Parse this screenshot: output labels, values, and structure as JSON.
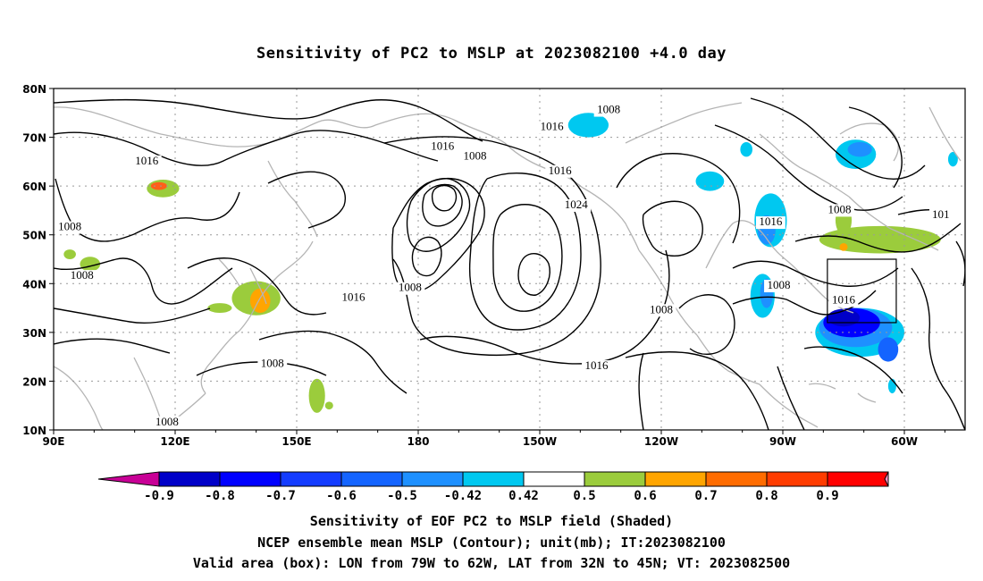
{
  "title": "Sensitivity of PC2 to MSLP at 2023082100 +4.0 day",
  "axes": {
    "lat_labels": [
      "80N",
      "70N",
      "60N",
      "50N",
      "40N",
      "30N",
      "20N",
      "10N"
    ],
    "lon_labels": [
      "90E",
      "120E",
      "150E",
      "180",
      "150W",
      "120W",
      "90W",
      "60W"
    ]
  },
  "contour_labels": [
    {
      "text": "1016",
      "lon": 113,
      "lat": 65
    },
    {
      "text": "1008",
      "lon": 94,
      "lat": 51.5
    },
    {
      "text": "1008",
      "lon": 97,
      "lat": 41.5
    },
    {
      "text": "1016",
      "lon": -174,
      "lat": 68
    },
    {
      "text": "1008",
      "lon": -166,
      "lat": 66
    },
    {
      "text": "1016",
      "lon": -147,
      "lat": 72
    },
    {
      "text": "1008",
      "lon": -133,
      "lat": 75.5
    },
    {
      "text": "1016",
      "lon": -145,
      "lat": 63
    },
    {
      "text": "1024",
      "lon": -141,
      "lat": 56
    },
    {
      "text": "1016",
      "lon": 164,
      "lat": 37
    },
    {
      "text": "1008",
      "lon": 178,
      "lat": 39
    },
    {
      "text": "1008",
      "lon": -120,
      "lat": 34.5
    },
    {
      "text": "1016",
      "lon": -136,
      "lat": 23
    },
    {
      "text": "1008",
      "lon": 144,
      "lat": 23.5
    },
    {
      "text": "1008",
      "lon": 118,
      "lat": 11.5
    },
    {
      "text": "1008",
      "lon": -76,
      "lat": 55
    },
    {
      "text": "1016",
      "lon": -93,
      "lat": 52.5
    },
    {
      "text": "1008",
      "lon": -91,
      "lat": 39.5
    },
    {
      "text": "1016",
      "lon": -75,
      "lat": 36.5
    },
    {
      "text": "101",
      "lon": -51,
      "lat": 54
    }
  ],
  "shaded_regions": [
    {
      "level": 0.5,
      "color": "#9bcc3c",
      "lon": 117,
      "lat": 59.5,
      "rx": 4,
      "ry": 1.8
    },
    {
      "level": 0.7,
      "color": "#ff5f1a",
      "lon": 116,
      "lat": 60,
      "rx": 2,
      "ry": 0.8
    },
    {
      "level": 0.5,
      "color": "#9bcc3c",
      "lon": 99,
      "lat": 44,
      "rx": 2.5,
      "ry": 1.5
    },
    {
      "level": 0.5,
      "color": "#9bcc3c",
      "lon": 94,
      "lat": 46,
      "rx": 1.5,
      "ry": 1
    },
    {
      "level": 0.5,
      "color": "#9bcc3c",
      "lon": 140,
      "lat": 37,
      "rx": 6,
      "ry": 3.5
    },
    {
      "level": 0.6,
      "color": "#ffa500",
      "lon": 141,
      "lat": 36.5,
      "rx": 2.5,
      "ry": 2.5
    },
    {
      "level": 0.5,
      "color": "#9bcc3c",
      "lon": 131,
      "lat": 35,
      "rx": 3,
      "ry": 1
    },
    {
      "level": 0.5,
      "color": "#9bcc3c",
      "lon": 155,
      "lat": 17,
      "rx": 2,
      "ry": 3.5
    },
    {
      "level": 0.5,
      "color": "#9bcc3c",
      "lon": 158,
      "lat": 15,
      "rx": 1,
      "ry": 0.8
    },
    {
      "level": -0.42,
      "color": "#00c8f0",
      "lon": -138,
      "lat": 72.5,
      "rx": 5,
      "ry": 2.5
    },
    {
      "level": -0.42,
      "color": "#00c8f0",
      "lon": -108,
      "lat": 61,
      "rx": 3.5,
      "ry": 2
    },
    {
      "level": -0.42,
      "color": "#00c8f0",
      "lon": -99,
      "lat": 67.5,
      "rx": 1.5,
      "ry": 1.5
    },
    {
      "level": -0.42,
      "color": "#00c8f0",
      "lon": -93,
      "lat": 53,
      "rx": 4,
      "ry": 5.5
    },
    {
      "level": -0.5,
      "color": "#1e90ff",
      "lon": -94,
      "lat": 51,
      "rx": 2.2,
      "ry": 3
    },
    {
      "level": -0.42,
      "color": "#00c8f0",
      "lon": -95,
      "lat": 37.5,
      "rx": 3,
      "ry": 4.5
    },
    {
      "level": -0.5,
      "color": "#1e90ff",
      "lon": -94,
      "lat": 38,
      "rx": 1.6,
      "ry": 3
    },
    {
      "level": -0.42,
      "color": "#00c8f0",
      "lon": -71,
      "lat": 30,
      "rx": 11,
      "ry": 5
    },
    {
      "level": -0.5,
      "color": "#1e90ff",
      "lon": -72,
      "lat": 31,
      "rx": 9,
      "ry": 4
    },
    {
      "level": -0.8,
      "color": "#0000ff",
      "lon": -73,
      "lat": 32,
      "rx": 7,
      "ry": 3
    },
    {
      "level": -0.9,
      "color": "#0000c8",
      "lon": -75,
      "lat": 33,
      "rx": 4,
      "ry": 1.8
    },
    {
      "level": -0.6,
      "color": "#1464ff",
      "lon": -64,
      "lat": 26.5,
      "rx": 2.5,
      "ry": 2.5
    },
    {
      "level": -0.42,
      "color": "#00c8f0",
      "lon": -63,
      "lat": 19,
      "rx": 1,
      "ry": 1.5
    },
    {
      "level": -0.42,
      "color": "#00c8f0",
      "lon": -72,
      "lat": 66.5,
      "rx": 5,
      "ry": 3
    },
    {
      "level": -0.5,
      "color": "#1e90ff",
      "lon": -71,
      "lat": 67.5,
      "rx": 3,
      "ry": 1.5
    },
    {
      "level": -0.42,
      "color": "#00c8f0",
      "lon": -48,
      "lat": 65.5,
      "rx": 1.2,
      "ry": 1.5
    },
    {
      "level": 0.5,
      "color": "#9bcc3c",
      "lon": -66,
      "lat": 49,
      "rx": 15,
      "ry": 2.8
    },
    {
      "level": 0.5,
      "color": "#9bcc3c",
      "lon": -75,
      "lat": 53,
      "rx": 2,
      "ry": 3
    },
    {
      "level": 0.6,
      "color": "#ffa500",
      "lon": -75,
      "lat": 47.5,
      "rx": 1,
      "ry": 0.8
    }
  ],
  "valid_box": {
    "lon_min": -79,
    "lon_max": -62,
    "lat_min": 32,
    "lat_max": 45
  },
  "colorbar": {
    "labels": [
      "-0.9",
      "-0.8",
      "-0.7",
      "-0.6",
      "-0.5",
      "-0.42",
      "0.42",
      "0.5",
      "0.6",
      "0.7",
      "0.8",
      "0.9"
    ],
    "colors": [
      "#0000c8",
      "#0000ff",
      "#143cff",
      "#1464ff",
      "#1e90ff",
      "#00c8f0",
      "#ffffff",
      "#9bcc3c",
      "#ffa500",
      "#ff6c00",
      "#ff3c00",
      "#ff0000"
    ],
    "left_arrow_color": "#c80096",
    "right_arrow_color": "#ff96c8"
  },
  "caption": {
    "line1": "Sensitivity of EOF PC2 to MSLP field (Shaded)",
    "line2": "NCEP ensemble mean MSLP (Contour); unit(mb); IT:2023082100",
    "line3": "Valid area (box): LON from 79W to 62W, LAT from 32N to 45N; VT: 2023082500"
  }
}
